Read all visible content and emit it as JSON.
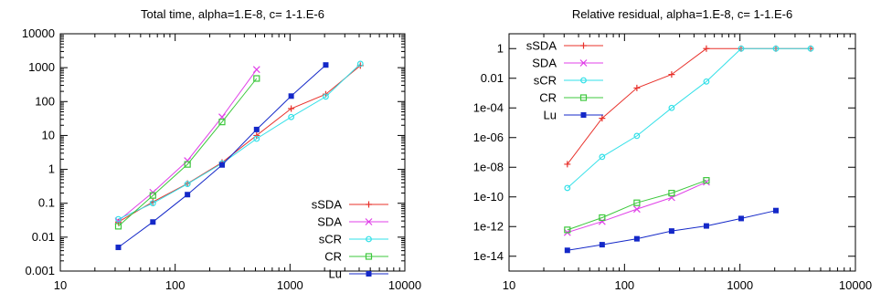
{
  "chart_data": [
    {
      "type": "line",
      "title": "Total time, alpha=1.E-8, c= 1-1.E-6",
      "xlabel": "",
      "ylabel": "",
      "xscale": "log",
      "yscale": "log",
      "xlim": [
        10,
        10000
      ],
      "ylim": [
        0.001,
        10000
      ],
      "xticks": [
        10,
        100,
        1000,
        10000
      ],
      "xtick_labels": [
        "10",
        "100",
        "1000",
        "10000"
      ],
      "yticks": [
        0.001,
        0.01,
        0.1,
        1,
        10,
        100,
        1000,
        10000
      ],
      "ytick_labels": [
        "0.001",
        "0.01",
        "0.1",
        "1",
        "10",
        "100",
        "1000",
        "10000"
      ],
      "legend_position": "bottom-right",
      "grid": false,
      "series": [
        {
          "name": "sSDA",
          "color": "#e8302a",
          "marker": "plus",
          "x": [
            32,
            64,
            128,
            256,
            512,
            1024,
            2048,
            4096
          ],
          "y": [
            0.028,
            0.11,
            0.38,
            1.6,
            10,
            62,
            165,
            1150
          ]
        },
        {
          "name": "SDA",
          "color": "#e040e8",
          "marker": "cross",
          "x": [
            32,
            64,
            128,
            256,
            512
          ],
          "y": [
            0.03,
            0.21,
            1.8,
            35,
            880
          ]
        },
        {
          "name": "sCR",
          "color": "#32e0e8",
          "marker": "circle",
          "x": [
            32,
            64,
            128,
            256,
            512,
            1024,
            2048,
            4096
          ],
          "y": [
            0.034,
            0.1,
            0.37,
            1.5,
            8,
            35,
            140,
            1300
          ]
        },
        {
          "name": "CR",
          "color": "#3cc83c",
          "marker": "square-open",
          "x": [
            32,
            64,
            128,
            256,
            512
          ],
          "y": [
            0.021,
            0.17,
            1.4,
            25,
            480
          ]
        },
        {
          "name": "Lu",
          "color": "#1428c8",
          "marker": "square-filled",
          "x": [
            32,
            64,
            128,
            256,
            512,
            1024,
            2048
          ],
          "y": [
            0.005,
            0.028,
            0.18,
            1.35,
            15,
            145,
            1200
          ]
        }
      ]
    },
    {
      "type": "line",
      "title": "Relative residual, alpha=1.E-8, c= 1-1.E-6",
      "xlabel": "",
      "ylabel": "",
      "xscale": "log",
      "yscale": "log",
      "xlim": [
        10,
        10000
      ],
      "ylim": [
        1e-15,
        10
      ],
      "xticks": [
        10,
        100,
        1000,
        10000
      ],
      "xtick_labels": [
        "10",
        "100",
        "1000",
        "10000"
      ],
      "yticks": [
        1e-14,
        1e-12,
        1e-10,
        1e-08,
        1e-06,
        0.0001,
        0.01,
        1
      ],
      "ytick_labels": [
        "1e-14",
        "1e-12",
        "1e-10",
        "1e-08",
        "1e-06",
        "1e-04",
        "0.01",
        "1"
      ],
      "legend_position": "top-left",
      "grid": false,
      "series": [
        {
          "name": "sSDA",
          "color": "#e8302a",
          "marker": "plus",
          "x": [
            32,
            64,
            128,
            256,
            512,
            1024,
            2048,
            4096
          ],
          "y": [
            1.6e-08,
            2e-05,
            0.0022,
            0.018,
            1,
            1,
            1,
            1
          ]
        },
        {
          "name": "SDA",
          "color": "#e040e8",
          "marker": "cross",
          "x": [
            32,
            64,
            128,
            256,
            512
          ],
          "y": [
            4e-13,
            2.2e-12,
            1.5e-11,
            9e-11,
            1e-09
          ]
        },
        {
          "name": "sCR",
          "color": "#32e0e8",
          "marker": "circle",
          "x": [
            32,
            64,
            128,
            256,
            512,
            1024,
            2048,
            4096
          ],
          "y": [
            4e-10,
            5e-08,
            1.3e-06,
            0.0001,
            0.006,
            1,
            1,
            1
          ]
        },
        {
          "name": "CR",
          "color": "#3cc83c",
          "marker": "square-open",
          "x": [
            32,
            64,
            128,
            256,
            512
          ],
          "y": [
            6e-13,
            4e-12,
            4e-11,
            1.8e-10,
            1.3e-09
          ]
        },
        {
          "name": "Lu",
          "color": "#1428c8",
          "marker": "square-filled",
          "x": [
            32,
            64,
            128,
            256,
            512,
            1024,
            2048
          ],
          "y": [
            2.5e-14,
            6e-14,
            1.5e-13,
            5e-13,
            1.1e-12,
            3.5e-12,
            1.2e-11
          ]
        }
      ]
    }
  ]
}
